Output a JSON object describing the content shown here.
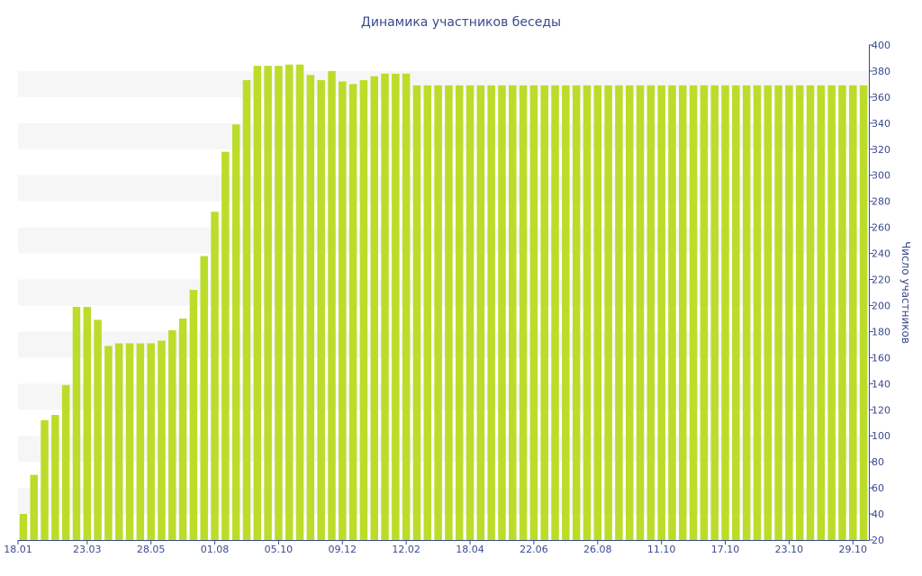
{
  "chart_data": {
    "type": "bar",
    "title": "Динамика участников беседы",
    "xlabel": "",
    "ylabel": "Число участников",
    "ylim": [
      20,
      400
    ],
    "yticks": [
      20,
      40,
      60,
      80,
      100,
      120,
      140,
      160,
      180,
      200,
      220,
      240,
      260,
      280,
      300,
      320,
      340,
      360,
      380,
      400
    ],
    "y_axis_side": "right",
    "grid": "alternating horizontal bands",
    "bar_color": "#bcdc2a",
    "band_color": "#f6f6f6",
    "text_color": "#3a4a8c",
    "xtick_labels": [
      "18.01",
      "23.03",
      "28.05",
      "01.08",
      "05.10",
      "09.12",
      "12.02",
      "18.04",
      "22.06",
      "26.08",
      "11.10",
      "17.10",
      "23.10",
      "29.10"
    ],
    "xtick_positions": [
      0,
      6,
      12,
      18,
      24,
      30,
      36,
      42,
      48,
      54,
      60,
      66,
      72,
      78
    ],
    "values": [
      40,
      70,
      112,
      116,
      139,
      199,
      199,
      189,
      169,
      171,
      171,
      171,
      171,
      173,
      181,
      190,
      212,
      238,
      272,
      318,
      339,
      373,
      384,
      384,
      384,
      385,
      385,
      377,
      373,
      380,
      372,
      370,
      373,
      376,
      378,
      378,
      378,
      369,
      369,
      369,
      369,
      369,
      369,
      369,
      369,
      369,
      369,
      369,
      369,
      369,
      369,
      369,
      369,
      369,
      369,
      369,
      369,
      369,
      369,
      369,
      369,
      369,
      369,
      369,
      369,
      369,
      369,
      369,
      369,
      369,
      369,
      369,
      369,
      369,
      369,
      369,
      369,
      369,
      369,
      369
    ]
  }
}
